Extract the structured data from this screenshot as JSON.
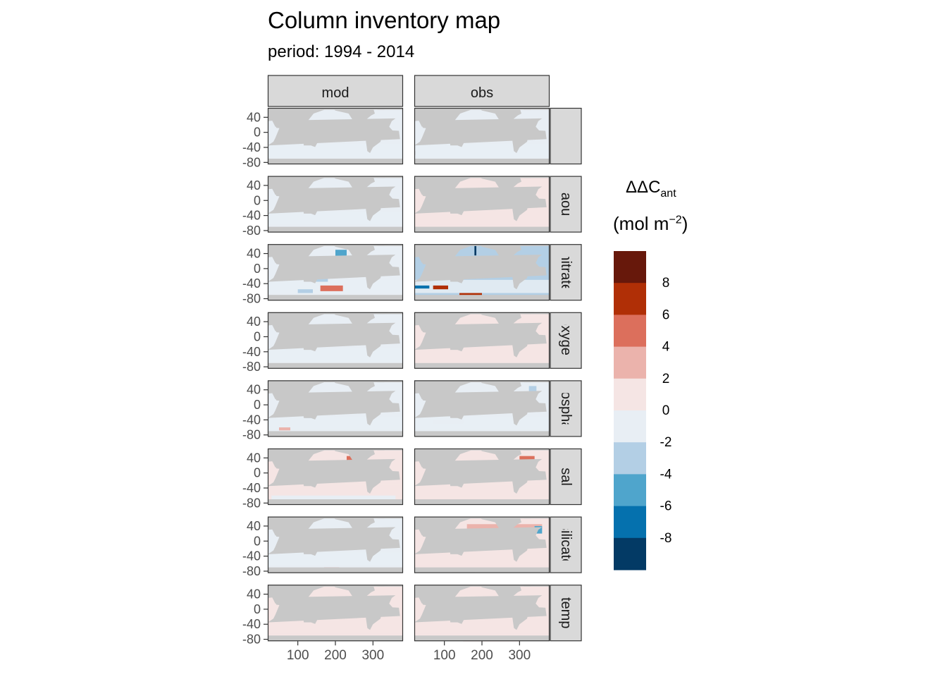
{
  "chart_data": {
    "type": "heatmap",
    "title": "Column inventory map",
    "subtitle": "period: 1994 - 2014",
    "columns": [
      "mod",
      "obs"
    ],
    "rows": [
      "",
      "aou",
      "nitrate",
      "oxygen",
      "phosphate",
      "sal",
      "silicate",
      "temp"
    ],
    "row_strip_labels_shown": [
      "",
      "aou",
      "nitrate",
      "oxygen",
      "hosphat",
      "sal",
      "silicate",
      "temp"
    ],
    "x_ticks": [
      100,
      200,
      300
    ],
    "y_ticks": [
      40,
      0,
      -40,
      -80
    ],
    "xlim": [
      20,
      380
    ],
    "ylim": [
      -85,
      65
    ],
    "grid": false,
    "legend": {
      "title": "ΔΔC",
      "title_subscript": "ant",
      "unit_prefix": "(mol m",
      "unit_superscript": "−2",
      "unit_suffix": ")",
      "placement": "right",
      "breaks": [
        "8",
        "6",
        "4",
        "2",
        "0",
        "-2",
        "-4",
        "-6",
        "-8"
      ],
      "bins": [
        {
          "range": [
            8,
            10
          ],
          "color": "#67180b"
        },
        {
          "range": [
            6,
            8
          ],
          "color": "#b02f06"
        },
        {
          "range": [
            4,
            6
          ],
          "color": "#dc6f5c"
        },
        {
          "range": [
            2,
            4
          ],
          "color": "#ebb3ac"
        },
        {
          "range": [
            0,
            2
          ],
          "color": "#f5e5e4"
        },
        {
          "range": [
            -2,
            0
          ],
          "color": "#e8eef4"
        },
        {
          "range": [
            -4,
            -2
          ],
          "color": "#b3cfe5"
        },
        {
          "range": [
            -6,
            -4
          ],
          "color": "#4fa5cc"
        },
        {
          "range": [
            -8,
            -6
          ],
          "color": "#0571ae"
        },
        {
          "range": [
            -10,
            -8
          ],
          "color": "#033a65"
        }
      ]
    },
    "panel_dominant_values": {
      "mod": [
        -1,
        -1,
        -1,
        -1,
        -1,
        1,
        -1,
        1
      ],
      "obs": [
        -1,
        1,
        -3,
        1,
        -1,
        1,
        1,
        1
      ]
    },
    "land_color": "#c8c8c8",
    "strip_fill": "#d9d9d9"
  }
}
